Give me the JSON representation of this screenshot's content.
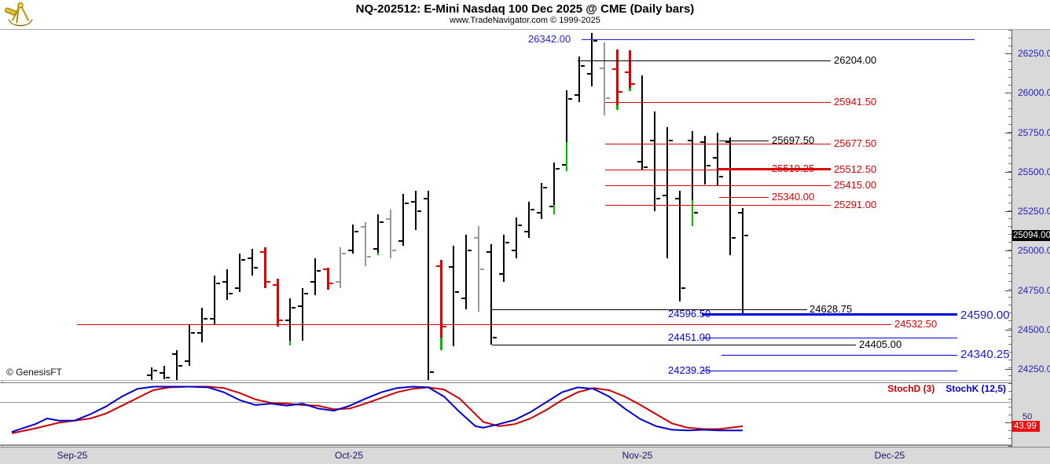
{
  "header": {
    "title": "NQ-202512:  E-Mini Nasdaq 100 Dec 2025 @ CME  (Daily bars)",
    "subtitle": "www.TradeNavigator.com © 1999-2025",
    "logo": "sextant-logo"
  },
  "watermark": "© GenesisFT",
  "chart_data": [
    {
      "type": "ohlc",
      "title": "NQ-202512: E-Mini Nasdaq 100 Dec 2025 @ CME (Daily bars)",
      "y_axis": {
        "side": "right",
        "last_price": "25094.00",
        "range": [
          24150,
          26400
        ],
        "labels": [
          [
            "26250.0",
            26250
          ],
          [
            "26000.0",
            26000
          ],
          [
            "25750.0",
            25750
          ],
          [
            "25500.0",
            25500
          ],
          [
            "25250.0",
            25250
          ],
          [
            "25000.0",
            25000
          ],
          [
            "24750.0",
            24750
          ],
          [
            "24500.0",
            24500
          ],
          [
            "24250.0",
            24250
          ]
        ]
      },
      "x_axis": {
        "labels": [
          [
            "Sep-25",
            92
          ],
          [
            "Oct-25",
            444
          ],
          [
            "Nov-25",
            811
          ],
          [
            "Dec-25",
            1132
          ]
        ]
      },
      "bar_colors": {
        "k": "#000000",
        "r": "#e00000",
        "g": "#989898",
        "up_segment": "#00bb00"
      },
      "bars": [
        [
          193,
          "k",
          24210,
          24260,
          24175,
          24240
        ],
        [
          209,
          "k",
          24225,
          24270,
          24185,
          24195
        ],
        [
          225,
          "k",
          24345,
          24370,
          24180,
          24270
        ],
        [
          241,
          "k",
          24300,
          24530,
          24270,
          24480
        ],
        [
          257,
          "k",
          24480,
          24640,
          24420,
          24570
        ],
        [
          273,
          "k",
          24570,
          24840,
          24530,
          24790
        ],
        [
          289,
          "k",
          24800,
          24880,
          24690,
          24730
        ],
        [
          305,
          "k",
          24760,
          24980,
          24740,
          24940
        ],
        [
          321,
          "k",
          24950,
          25010,
          24840,
          24890
        ],
        [
          337,
          "r",
          24990,
          25020,
          24760,
          24800
        ],
        [
          353,
          "r",
          24780,
          24820,
          24520,
          24560
        ],
        [
          369,
          "k",
          24560,
          24700,
          24400,
          24640,
          24430
        ],
        [
          385,
          "k",
          24650,
          24760,
          24430,
          24730
        ],
        [
          401,
          "k",
          24800,
          24950,
          24720,
          24870
        ],
        [
          417,
          "r",
          24880,
          24890,
          24750,
          24790
        ],
        [
          433,
          "g",
          24800,
          25020,
          24760,
          24980
        ],
        [
          449,
          "k",
          25000,
          25165,
          24980,
          25120
        ],
        [
          465,
          "g",
          25150,
          25180,
          24900,
          24960
        ],
        [
          481,
          "k",
          25010,
          25230,
          24970,
          25180,
          24985
        ],
        [
          497,
          "g",
          25200,
          25260,
          24950,
          25000
        ],
        [
          513,
          "k",
          25060,
          25360,
          25030,
          25300
        ],
        [
          529,
          "k",
          25310,
          25380,
          25130,
          25250
        ],
        [
          545,
          "k",
          25330,
          25380,
          24180,
          24230
        ],
        [
          561,
          "r",
          24900,
          24940,
          24370,
          24520,
          24450
        ],
        [
          577,
          "k",
          24895,
          25030,
          24395,
          24740
        ],
        [
          593,
          "k",
          24700,
          25100,
          24630,
          25000
        ],
        [
          609,
          "g",
          25080,
          25155,
          24615,
          24880
        ],
        [
          625,
          "k",
          24990,
          25040,
          24405,
          24450
        ],
        [
          641,
          "k",
          24850,
          25100,
          24800,
          25050
        ],
        [
          657,
          "k",
          25000,
          25210,
          24950,
          25160
        ],
        [
          673,
          "k",
          25120,
          25310,
          25080,
          25260
        ],
        [
          689,
          "k",
          25240,
          25430,
          25200,
          25400
        ],
        [
          705,
          "k",
          25280,
          25560,
          25230,
          25520,
          25290
        ],
        [
          721,
          "k",
          25545,
          26015,
          25505,
          25960,
          25690
        ],
        [
          737,
          "k",
          25985,
          26230,
          25940,
          26170
        ],
        [
          753,
          "k",
          26120,
          26380,
          26040,
          26330
        ],
        [
          769,
          "g",
          26155,
          26320,
          25855,
          25965
        ],
        [
          785,
          "r",
          26150,
          26275,
          25890,
          26005,
          25920
        ],
        [
          801,
          "r",
          26130,
          26270,
          26010,
          26055,
          26030
        ],
        [
          817,
          "k",
          25565,
          26110,
          25515,
          25530
        ],
        [
          833,
          "k",
          25700,
          25880,
          25250,
          25330
        ],
        [
          849,
          "k",
          25350,
          25780,
          24950,
          25700
        ],
        [
          865,
          "k",
          25330,
          25380,
          24680,
          24760
        ],
        [
          881,
          "k",
          25700,
          25755,
          25155,
          25240,
          25320
        ],
        [
          897,
          "k",
          25690,
          25730,
          25420,
          25540
        ],
        [
          913,
          "k",
          25590,
          25750,
          25410,
          25470
        ],
        [
          929,
          "k",
          25690,
          25720,
          24970,
          25080
        ],
        [
          945,
          "k",
          25240,
          25270,
          24596,
          25094
        ]
      ],
      "hlines": [
        [
          26342.0,
          740,
          1240,
          "#2222cc",
          1,
          "26342.00",
          672
        ],
        [
          26204.0,
          735,
          1057,
          "#000000",
          1,
          "26204.00",
          1061
        ],
        [
          25941.5,
          770,
          1057,
          "#dd0000",
          1,
          "25941.50",
          1061
        ],
        [
          25697.5,
          915,
          978,
          "#000000",
          1,
          "25697.50",
          982
        ],
        [
          25677.5,
          770,
          1057,
          "#dd0000",
          1,
          "25677.50",
          1061
        ],
        [
          25519.25,
          913,
          1057,
          "#dd0000",
          2,
          "25519.25",
          982
        ],
        [
          25512.5,
          770,
          1057,
          "#dd0000",
          1,
          "25512.50",
          1061
        ],
        [
          25415.0,
          770,
          1057,
          "#dd0000",
          1,
          "25415.00",
          1061
        ],
        [
          25340.0,
          915,
          978,
          "#dd0000",
          1,
          "25340.00",
          982
        ],
        [
          25291.0,
          770,
          1057,
          "#dd0000",
          1,
          "25291.00",
          1061
        ],
        [
          24628.75,
          626,
          1027,
          "#000000",
          1,
          "24628.75",
          1030
        ],
        [
          24596.5,
          893,
          1218,
          "#0000dd",
          3,
          "24596.50",
          850
        ],
        [
          24532.5,
          98,
          1134,
          "#dd0000",
          1,
          "24532.50",
          1138
        ],
        [
          24451.0,
          893,
          1218,
          "#0000dd",
          1,
          "24451.00",
          850
        ],
        [
          24405.0,
          626,
          1089,
          "#000000",
          1,
          "24405.00",
          1093
        ],
        [
          24340.25,
          918,
          1218,
          "#0000dd",
          1,
          "",
          0
        ],
        [
          24239.25,
          893,
          1218,
          "#0000dd",
          1,
          "24239.25",
          850
        ]
      ],
      "free_labels": [
        [
          "24590.00",
          1222,
          24590
        ],
        [
          "24340.25",
          1222,
          24340.25
        ]
      ]
    },
    {
      "type": "line",
      "panel": "stochastic",
      "ylim": [
        0,
        100
      ],
      "gridlines": [
        80,
        20
      ],
      "y_label_50": "50",
      "last_d_label": "43.99",
      "series": [
        {
          "name": "StochK (12,5)",
          "color": "#0000cc",
          "points": [
            [
              15,
              36
            ],
            [
              45,
              47
            ],
            [
              60,
              55
            ],
            [
              75,
              52
            ],
            [
              95,
              52
            ],
            [
              115,
              61
            ],
            [
              135,
              72
            ],
            [
              155,
              86
            ],
            [
              175,
              97
            ],
            [
              195,
              100
            ],
            [
              215,
              100
            ],
            [
              240,
              100
            ],
            [
              265,
              99
            ],
            [
              285,
              92
            ],
            [
              305,
              81
            ],
            [
              325,
              74
            ],
            [
              345,
              76
            ],
            [
              365,
              73
            ],
            [
              385,
              76
            ],
            [
              405,
              69
            ],
            [
              425,
              66
            ],
            [
              445,
              73
            ],
            [
              465,
              83
            ],
            [
              485,
              92
            ],
            [
              505,
              98
            ],
            [
              525,
              100
            ],
            [
              545,
              99
            ],
            [
              565,
              86
            ],
            [
              585,
              64
            ],
            [
              605,
              44
            ],
            [
              615,
              42
            ],
            [
              635,
              47
            ],
            [
              655,
              53
            ],
            [
              675,
              64
            ],
            [
              695,
              78
            ],
            [
              715,
              92
            ],
            [
              735,
              99
            ],
            [
              755,
              97
            ],
            [
              775,
              86
            ],
            [
              795,
              69
            ],
            [
              815,
              54
            ],
            [
              835,
              44
            ],
            [
              855,
              39
            ],
            [
              875,
              38
            ],
            [
              895,
              39
            ],
            [
              915,
              38
            ],
            [
              945,
              38
            ]
          ]
        },
        {
          "name": "StochD (3)",
          "color": "#cc0000",
          "points": [
            [
              15,
              34
            ],
            [
              45,
              41
            ],
            [
              60,
              45
            ],
            [
              75,
              49
            ],
            [
              95,
              52
            ],
            [
              115,
              55
            ],
            [
              135,
              62
            ],
            [
              155,
              73
            ],
            [
              175,
              84
            ],
            [
              195,
              95
            ],
            [
              215,
              99
            ],
            [
              240,
              100
            ],
            [
              265,
              100
            ],
            [
              285,
              98
            ],
            [
              305,
              91
            ],
            [
              325,
              82
            ],
            [
              345,
              77
            ],
            [
              365,
              76
            ],
            [
              385,
              74
            ],
            [
              405,
              73
            ],
            [
              425,
              68
            ],
            [
              445,
              69
            ],
            [
              465,
              76
            ],
            [
              485,
              84
            ],
            [
              505,
              92
            ],
            [
              525,
              97
            ],
            [
              545,
              99
            ],
            [
              565,
              96
            ],
            [
              585,
              83
            ],
            [
              605,
              61
            ],
            [
              615,
              50
            ],
            [
              635,
              44
            ],
            [
              655,
              47
            ],
            [
              675,
              55
            ],
            [
              695,
              67
            ],
            [
              715,
              81
            ],
            [
              735,
              92
            ],
            [
              755,
              98
            ],
            [
              775,
              95
            ],
            [
              795,
              86
            ],
            [
              815,
              74
            ],
            [
              835,
              61
            ],
            [
              855,
              48
            ],
            [
              875,
              42
            ],
            [
              895,
              40
            ],
            [
              915,
              40
            ],
            [
              945,
              44
            ]
          ]
        }
      ]
    }
  ]
}
